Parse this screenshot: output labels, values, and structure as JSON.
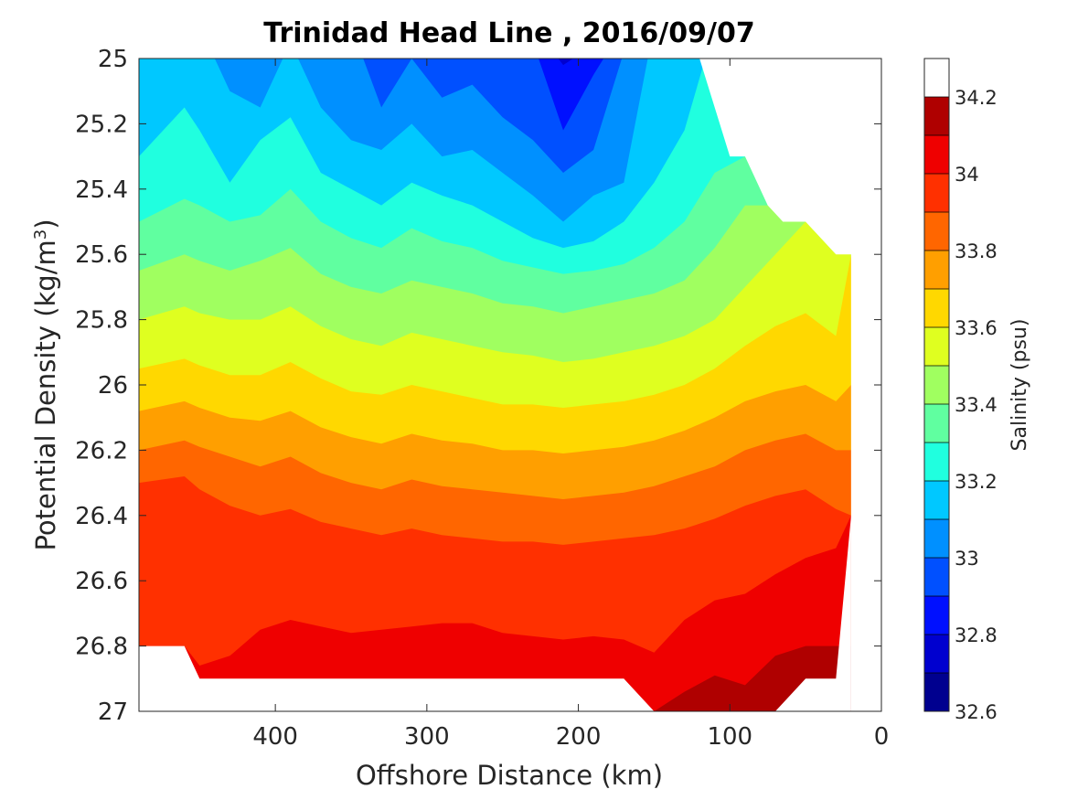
{
  "chart_data": {
    "type": "heatmap",
    "subtype": "filled-contour",
    "title": "Trinidad Head Line , 2016/09/07",
    "xlabel": "Offshore Distance (km)",
    "ylabel_main": "Potential Density (kg/m",
    "ylabel_sup": "3",
    "ylabel_close": ")",
    "colorbar_label": "Salinity (psu)",
    "xlim": [
      0,
      490
    ],
    "x_reversed": true,
    "x_ticks": [
      "400",
      "300",
      "200",
      "100",
      "0"
    ],
    "x_tick_values": [
      400,
      300,
      200,
      100,
      0
    ],
    "ylim": [
      25,
      27
    ],
    "y_reversed": true,
    "y_ticks": [
      "25",
      "25.2",
      "25.4",
      "25.6",
      "25.8",
      "26",
      "26.2",
      "26.4",
      "26.6",
      "26.8",
      "27"
    ],
    "y_tick_values": [
      25,
      25.2,
      25.4,
      25.6,
      25.8,
      26,
      26.2,
      26.4,
      26.6,
      26.8,
      27
    ],
    "clim": [
      32.6,
      34.3
    ],
    "levels": [
      32.6,
      32.7,
      32.8,
      32.9,
      33.0,
      33.1,
      33.2,
      33.3,
      33.4,
      33.5,
      33.6,
      33.7,
      33.8,
      33.9,
      34.0,
      34.1,
      34.2,
      34.3
    ],
    "colorbar_ticks": [
      "32.6",
      "32.8",
      "33",
      "33.2",
      "33.4",
      "33.6",
      "33.8",
      "34",
      "34.2"
    ],
    "colorbar_tick_values": [
      32.6,
      32.8,
      33.0,
      33.2,
      33.4,
      33.6,
      33.8,
      34.0,
      34.2
    ],
    "colors": [
      "#00008f",
      "#0000cf",
      "#0010ff",
      "#0050ff",
      "#0090ff",
      "#00c8ff",
      "#20ffdf",
      "#60ffa0",
      "#a0ff60",
      "#dfff20",
      "#ffd800",
      "#ff9f00",
      "#ff6600",
      "#ff3000",
      "#ef0000",
      "#af0000"
    ],
    "x_stations": [
      490,
      460,
      450,
      430,
      410,
      390,
      370,
      350,
      330,
      310,
      290,
      270,
      250,
      230,
      210,
      190,
      170,
      150,
      130,
      110,
      90,
      70,
      50,
      30,
      20
    ],
    "depth_limit_density": [
      26.8,
      26.8,
      26.9,
      26.9,
      26.9,
      26.9,
      26.9,
      26.9,
      26.9,
      26.9,
      26.9,
      26.9,
      26.9,
      26.9,
      26.9,
      26.9,
      26.9,
      27.0,
      27.0,
      27.0,
      27.0,
      27.0,
      26.9,
      26.9,
      26.4
    ],
    "contours": [
      {
        "level": 32.8,
        "density": [
          24.9,
          24.9,
          24.9,
          24.9,
          24.9,
          24.9,
          24.9,
          24.9,
          24.9,
          24.9,
          24.9,
          24.9,
          24.9,
          24.9,
          25.02,
          24.96,
          24.9,
          24.9,
          24.9,
          24.9,
          24.9,
          24.9,
          24.9,
          24.9,
          24.9
        ]
      },
      {
        "level": 32.9,
        "density": [
          24.9,
          24.9,
          24.9,
          24.9,
          24.9,
          24.9,
          24.9,
          24.9,
          24.9,
          24.9,
          24.9,
          24.9,
          24.9,
          24.95,
          25.22,
          25.05,
          24.9,
          24.9,
          24.9,
          24.9,
          24.9,
          24.9,
          24.9,
          24.9,
          24.9
        ]
      },
      {
        "level": 33.0,
        "density": [
          24.9,
          24.9,
          24.9,
          24.9,
          24.9,
          24.9,
          24.9,
          24.9,
          25.15,
          25.0,
          25.12,
          25.08,
          25.18,
          25.25,
          25.35,
          25.28,
          24.98,
          24.9,
          24.9,
          24.9,
          24.9,
          24.9,
          24.9,
          24.9,
          24.9
        ]
      },
      {
        "level": 33.1,
        "density": [
          24.9,
          24.9,
          24.9,
          25.1,
          25.15,
          24.95,
          25.15,
          25.25,
          25.28,
          25.2,
          25.3,
          25.28,
          25.35,
          25.42,
          25.5,
          25.42,
          25.38,
          24.9,
          24.9,
          24.9,
          24.9,
          24.9,
          24.9,
          24.9,
          24.9
        ]
      },
      {
        "level": 33.2,
        "density": [
          25.3,
          25.15,
          25.22,
          25.38,
          25.25,
          25.18,
          25.35,
          25.4,
          25.45,
          25.38,
          25.42,
          25.45,
          25.5,
          25.55,
          25.58,
          25.56,
          25.5,
          25.38,
          25.22,
          24.9,
          24.9,
          24.9,
          24.9,
          24.9,
          24.9
        ]
      },
      {
        "level": 33.3,
        "density": [
          25.5,
          25.43,
          25.45,
          25.5,
          25.48,
          25.4,
          25.5,
          25.55,
          25.58,
          25.52,
          25.56,
          25.58,
          25.62,
          25.64,
          25.66,
          25.65,
          25.63,
          25.58,
          25.5,
          25.35,
          25.3,
          24.9,
          24.9,
          24.9,
          24.9
        ]
      },
      {
        "level": 33.4,
        "density": [
          25.65,
          25.6,
          25.62,
          25.65,
          25.62,
          25.58,
          25.66,
          25.7,
          25.72,
          25.68,
          25.7,
          25.72,
          25.75,
          25.76,
          25.78,
          25.76,
          25.74,
          25.72,
          25.68,
          25.58,
          25.45,
          25.45,
          24.9,
          24.9,
          24.9
        ]
      },
      {
        "level": 33.5,
        "density": [
          25.8,
          25.76,
          25.78,
          25.8,
          25.8,
          25.76,
          25.82,
          25.86,
          25.88,
          25.84,
          25.86,
          25.88,
          25.9,
          25.91,
          25.93,
          25.92,
          25.9,
          25.88,
          25.85,
          25.8,
          25.7,
          25.6,
          25.5,
          25.6,
          24.9
        ]
      },
      {
        "level": 33.6,
        "density": [
          25.95,
          25.92,
          25.94,
          25.97,
          25.97,
          25.93,
          25.98,
          26.02,
          26.03,
          26.0,
          26.02,
          26.04,
          26.06,
          26.06,
          26.07,
          26.06,
          26.05,
          26.03,
          26.0,
          25.95,
          25.88,
          25.82,
          25.78,
          25.85,
          25.6
        ]
      },
      {
        "level": 33.7,
        "density": [
          26.08,
          26.05,
          26.07,
          26.1,
          26.11,
          26.08,
          26.13,
          26.16,
          26.18,
          26.15,
          26.17,
          26.18,
          26.2,
          26.2,
          26.21,
          26.2,
          26.19,
          26.17,
          26.14,
          26.1,
          26.05,
          26.02,
          26.0,
          26.05,
          26.0
        ]
      },
      {
        "level": 33.8,
        "density": [
          26.2,
          26.17,
          26.19,
          26.22,
          26.25,
          26.22,
          26.27,
          26.3,
          26.32,
          26.29,
          26.31,
          26.32,
          26.33,
          26.34,
          26.35,
          26.34,
          26.33,
          26.31,
          26.28,
          26.25,
          26.2,
          26.17,
          26.15,
          26.2,
          26.2
        ]
      },
      {
        "level": 33.9,
        "density": [
          26.3,
          26.28,
          26.32,
          26.37,
          26.4,
          26.38,
          26.42,
          26.44,
          26.46,
          26.44,
          26.46,
          26.47,
          26.48,
          26.48,
          26.49,
          26.48,
          26.47,
          26.46,
          26.44,
          26.41,
          26.37,
          26.34,
          26.32,
          26.38,
          26.4
        ]
      },
      {
        "level": 34.0,
        "density": [
          26.8,
          26.8,
          26.86,
          26.83,
          26.75,
          26.72,
          26.74,
          26.76,
          26.75,
          26.74,
          26.73,
          26.73,
          26.76,
          26.77,
          26.78,
          26.77,
          26.78,
          26.82,
          26.72,
          26.66,
          26.64,
          26.58,
          26.53,
          26.5,
          26.4
        ]
      },
      {
        "level": 34.1,
        "density": [
          27.1,
          27.1,
          27.1,
          27.1,
          27.1,
          27.1,
          27.1,
          27.1,
          27.1,
          27.1,
          27.1,
          27.1,
          27.1,
          27.1,
          27.1,
          27.1,
          27.1,
          27.0,
          26.94,
          26.89,
          26.92,
          26.83,
          26.8,
          26.8,
          26.8
        ]
      },
      {
        "level": 34.2,
        "density": [
          27.1,
          27.1,
          27.1,
          27.1,
          27.1,
          27.1,
          27.1,
          27.1,
          27.1,
          27.1,
          27.1,
          27.1,
          27.1,
          27.1,
          27.1,
          27.1,
          27.1,
          27.1,
          27.1,
          27.1,
          27.1,
          27.1,
          27.1,
          27.1,
          27.1
        ]
      }
    ],
    "shallow_limit_diagonal": [
      [
        120,
        25.0
      ],
      [
        100,
        25.3
      ],
      [
        90,
        25.3
      ],
      [
        75,
        25.45
      ],
      [
        65,
        25.5
      ],
      [
        50,
        25.5
      ],
      [
        30,
        25.6
      ],
      [
        20,
        25.6
      ]
    ]
  }
}
